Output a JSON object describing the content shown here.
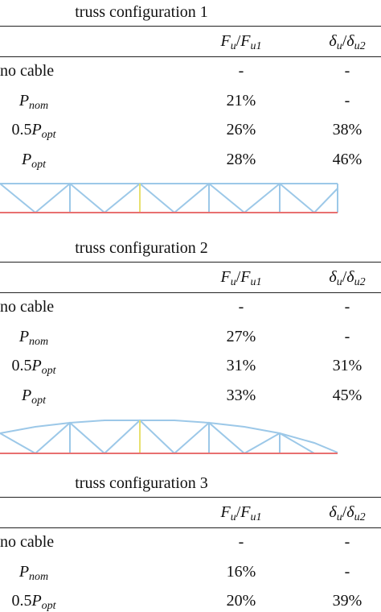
{
  "sections": [
    {
      "title": "truss configuration 1",
      "header": [
        {
          "num": "F",
          "num_sub": "u",
          "sep": "/",
          "den": "F",
          "den_sub": "u1"
        },
        {
          "num": "δ",
          "num_sub": "u",
          "sep": "/",
          "den": "δ",
          "den_sub": "u2"
        }
      ],
      "rows": [
        {
          "label": "no cable",
          "values": [
            "-",
            "-"
          ]
        },
        {
          "label": {
            "symbol": "P",
            "sub": "nom"
          },
          "values": [
            "21%",
            "-"
          ]
        },
        {
          "label": {
            "coef": "0.5",
            "symbol": "P",
            "sub": "opt"
          },
          "values": [
            "26%",
            "38%"
          ]
        },
        {
          "label": {
            "symbol": "P",
            "sub": "opt"
          },
          "values": [
            "28%",
            "46%"
          ]
        }
      ]
    },
    {
      "title": "truss configuration 2",
      "header": [
        {
          "num": "F",
          "num_sub": "u",
          "sep": "/",
          "den": "F",
          "den_sub": "u1"
        },
        {
          "num": "δ",
          "num_sub": "u",
          "sep": "/",
          "den": "δ",
          "den_sub": "u2"
        }
      ],
      "rows": [
        {
          "label": "no cable",
          "values": [
            "-",
            "-"
          ]
        },
        {
          "label": {
            "symbol": "P",
            "sub": "nom"
          },
          "values": [
            "27%",
            "-"
          ]
        },
        {
          "label": {
            "coef": "0.5",
            "symbol": "P",
            "sub": "opt"
          },
          "values": [
            "31%",
            "31%"
          ]
        },
        {
          "label": {
            "symbol": "P",
            "sub": "opt"
          },
          "values": [
            "33%",
            "45%"
          ]
        }
      ]
    },
    {
      "title": "truss configuration 3",
      "header": [
        {
          "num": "F",
          "num_sub": "u",
          "sep": "/",
          "den": "F",
          "den_sub": "u1"
        },
        {
          "num": "δ",
          "num_sub": "u",
          "sep": "/",
          "den": "δ",
          "den_sub": "u2"
        }
      ],
      "rows": [
        {
          "label": "no cable",
          "values": [
            "-",
            "-"
          ]
        },
        {
          "label": {
            "symbol": "P",
            "sub": "nom"
          },
          "values": [
            "16%",
            "-"
          ]
        },
        {
          "label": {
            "coef": "0.5",
            "symbol": "P",
            "sub": "opt"
          },
          "values": [
            "20%",
            "39%"
          ]
        }
      ]
    }
  ]
}
